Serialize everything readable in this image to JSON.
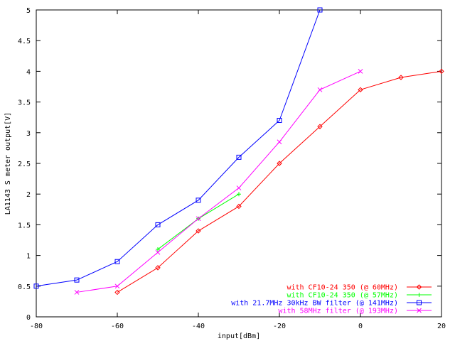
{
  "chart_data": {
    "type": "line",
    "title": "",
    "xlabel": "input[dBm]",
    "ylabel": "LA1143 S meter output[V]",
    "xlim": [
      -80,
      20
    ],
    "ylim": [
      0,
      5
    ],
    "x_ticks": [
      -80,
      -60,
      -40,
      -20,
      0,
      20
    ],
    "y_ticks": [
      0,
      0.5,
      1,
      1.5,
      2,
      2.5,
      3,
      3.5,
      4,
      4.5,
      5
    ],
    "x_tick_labels": [
      "-80",
      "-60",
      "-40",
      "-20",
      "0",
      "20"
    ],
    "y_tick_labels": [
      "0",
      "0.5",
      "1",
      "1.5",
      "2",
      "2.5",
      "3",
      "3.5",
      "4",
      "4.5",
      "5"
    ],
    "grid": false,
    "legend_position": "bottom-right",
    "series": [
      {
        "name": "with CF10-24 350 (@ 60MHz)",
        "color": "#ff0000",
        "marker": "diamond",
        "x": [
          -60,
          -50,
          -40,
          -30,
          -20,
          -10,
          0,
          10,
          20
        ],
        "y": [
          0.4,
          0.8,
          1.4,
          1.8,
          2.5,
          3.1,
          3.7,
          3.9,
          4.0
        ]
      },
      {
        "name": "with CF10-24 350 (@ 57MHz)",
        "color": "#00ff00",
        "marker": "plus",
        "x": [
          -50,
          -40,
          -30
        ],
        "y": [
          1.1,
          1.6,
          2.0
        ]
      },
      {
        "name": "with 21.7MHz 30kHz BW filter (@ 141MHz)",
        "color": "#0000ff",
        "marker": "square",
        "x": [
          -80,
          -70,
          -60,
          -50,
          -40,
          -30,
          -20,
          -10
        ],
        "y": [
          0.5,
          0.6,
          0.9,
          1.5,
          1.9,
          2.6,
          3.2,
          5.0
        ]
      },
      {
        "name": "with 58MHz filter (@ 193MHz)",
        "color": "#ff00ff",
        "marker": "cross",
        "x": [
          -70,
          -60,
          -50,
          -40,
          -30,
          -20,
          -10,
          0
        ],
        "y": [
          0.4,
          0.5,
          1.05,
          1.6,
          2.1,
          2.85,
          3.7,
          4.0
        ]
      }
    ]
  }
}
